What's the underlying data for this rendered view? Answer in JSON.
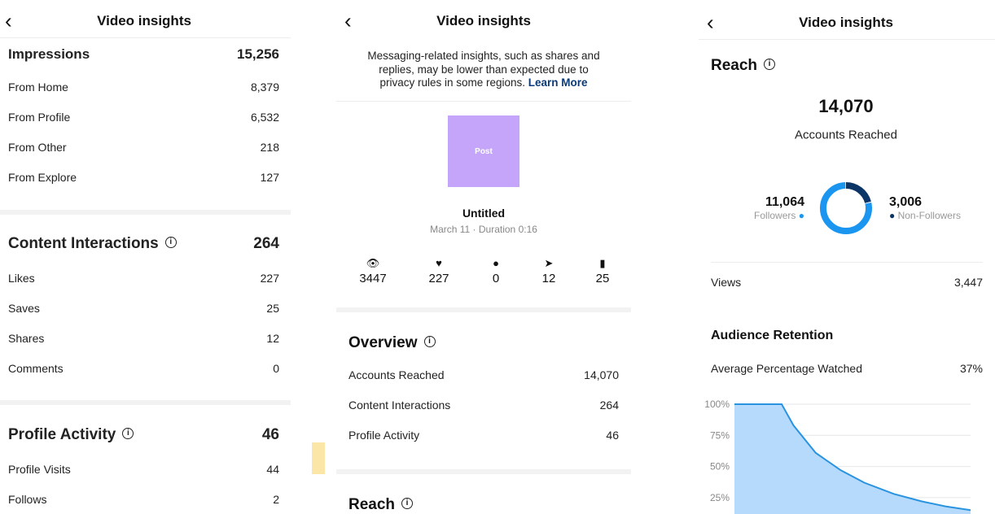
{
  "header_title": "Video insights",
  "panel1": {
    "impressions": {
      "label": "Impressions",
      "value": "15,256",
      "rows": [
        {
          "label": "From Home",
          "value": "8,379"
        },
        {
          "label": "From Profile",
          "value": "6,532"
        },
        {
          "label": "From Other",
          "value": "218"
        },
        {
          "label": "From Explore",
          "value": "127"
        }
      ]
    },
    "interactions": {
      "label": "Content Interactions",
      "value": "264",
      "rows": [
        {
          "label": "Likes",
          "value": "227"
        },
        {
          "label": "Saves",
          "value": "25"
        },
        {
          "label": "Shares",
          "value": "12"
        },
        {
          "label": "Comments",
          "value": "0"
        }
      ]
    },
    "profile": {
      "label": "Profile Activity",
      "value": "46",
      "rows": [
        {
          "label": "Profile Visits",
          "value": "44"
        },
        {
          "label": "Follows",
          "value": "2"
        }
      ]
    }
  },
  "panel2": {
    "notice_lines": [
      "Messaging-related insights, such as shares and",
      "replies, may be lower than expected due to",
      "privacy rules in some regions."
    ],
    "learn_more": "Learn More",
    "thumb_label": "Post",
    "thumb_color": "#c4a5fa",
    "post_title": "Untitled",
    "post_meta": "March 11 · Duration 0:16",
    "stats": [
      {
        "icon": "eye-icon",
        "value": "3447"
      },
      {
        "icon": "heart-icon",
        "value": "227"
      },
      {
        "icon": "comment-icon",
        "value": "0"
      },
      {
        "icon": "send-icon",
        "value": "12"
      },
      {
        "icon": "bookmark-icon",
        "value": "25"
      }
    ],
    "overview": {
      "label": "Overview",
      "rows": [
        {
          "label": "Accounts Reached",
          "value": "14,070"
        },
        {
          "label": "Content Interactions",
          "value": "264"
        },
        {
          "label": "Profile Activity",
          "value": "46"
        }
      ]
    },
    "reach_label": "Reach"
  },
  "panel3": {
    "reach_label": "Reach",
    "reach_value": "14,070",
    "reach_caption": "Accounts Reached",
    "followers": {
      "value": "11,064",
      "label": "Followers",
      "count": 11064,
      "color": "#1a96f0"
    },
    "non_followers": {
      "value": "3,006",
      "label": "Non-Followers",
      "count": 3006,
      "color": "#0b3566"
    },
    "views": {
      "label": "Views",
      "value": "3,447"
    },
    "retention": {
      "label": "Audience Retention",
      "avg_label": "Average Percentage Watched",
      "avg_value": "37%"
    }
  },
  "chart_data": {
    "type": "area",
    "y_ticks": [
      "100%",
      "75%",
      "50%",
      "25%"
    ],
    "ylim": [
      0,
      100
    ],
    "xlim": [
      0,
      16
    ],
    "grid": true,
    "x": [
      0,
      3.2,
      4.0,
      5.5,
      7.2,
      8.8,
      10.8,
      12.7,
      14.3,
      16
    ],
    "y": [
      100,
      100,
      83,
      61,
      47,
      37,
      28,
      22,
      18,
      15
    ],
    "line_color": "#2a93e0",
    "fill_color": "#b5dafc"
  }
}
